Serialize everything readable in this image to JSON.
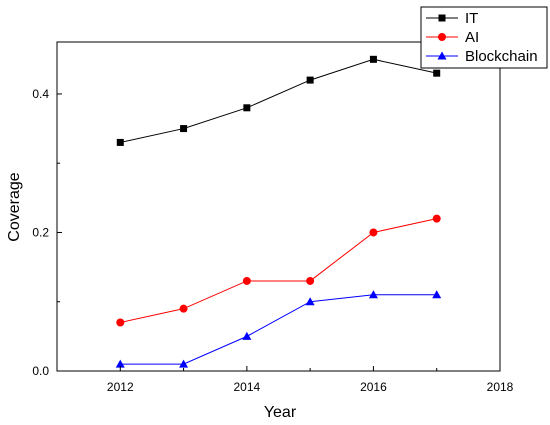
{
  "chart_data": {
    "type": "line",
    "title": "",
    "xlabel": "Year",
    "ylabel": "Coverage",
    "xlim": [
      2011,
      2018
    ],
    "ylim": [
      0,
      0.475
    ],
    "x_ticks": [
      "2012",
      "2014",
      "2016",
      "2018"
    ],
    "y_ticks": [
      "0.0",
      "0.2",
      "0.4"
    ],
    "grid": false,
    "legend_position": "top-right",
    "x": [
      2012,
      2013,
      2014,
      2015,
      2016,
      2017
    ],
    "series": [
      {
        "name": "IT",
        "color": "#000000",
        "marker": "square",
        "values": [
          0.33,
          0.35,
          0.38,
          0.42,
          0.45,
          0.43
        ]
      },
      {
        "name": "AI",
        "color": "#ff0000",
        "marker": "circle",
        "values": [
          0.07,
          0.09,
          0.13,
          0.13,
          0.2,
          0.22
        ]
      },
      {
        "name": "Blockchain",
        "color": "#0000ff",
        "marker": "triangle",
        "values": [
          0.01,
          0.01,
          0.05,
          0.1,
          0.11,
          0.11
        ]
      }
    ]
  }
}
